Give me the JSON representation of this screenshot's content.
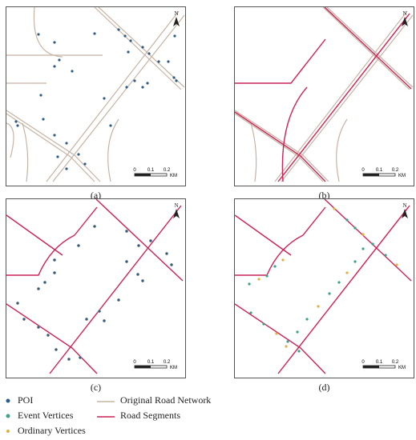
{
  "panels": [
    {
      "id": "a",
      "caption": "(a)"
    },
    {
      "id": "b",
      "caption": "(b)"
    },
    {
      "id": "c",
      "caption": "(c)"
    },
    {
      "id": "d",
      "caption": "(d)"
    }
  ],
  "north_label": "N",
  "scale_bar": {
    "ticks": [
      "0",
      "0.1",
      "0.2"
    ],
    "unit": "KM"
  },
  "legend": {
    "poi": "POI",
    "event_vertices": "Event Vertices",
    "ordinary_vertices": "Ordinary Vertices",
    "original_road_network": "Original Road Network",
    "road_segments": "Road Segments"
  },
  "colors": {
    "poi": "#2e5c8a",
    "event_vertex": "#3aa08c",
    "ordinary_vertex": "#e0b040",
    "original_road": "#c7b3a3",
    "road_segment": "#cc2255"
  }
}
